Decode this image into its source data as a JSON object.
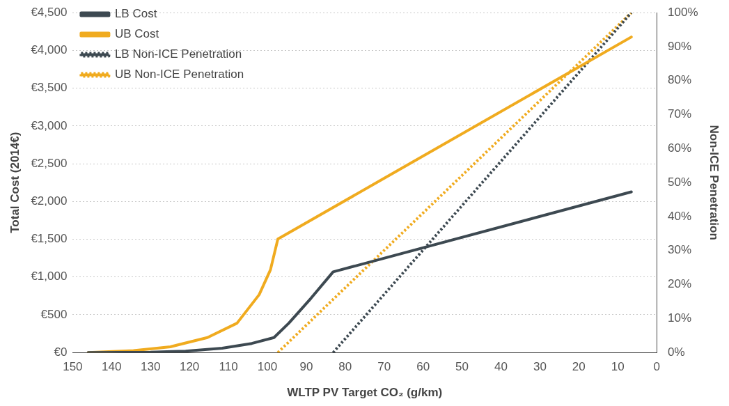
{
  "chart_data": {
    "type": "line",
    "xlabel": "WLTP PV Target CO₂ (g/km)",
    "ylabel": "Total Cost (2014€)",
    "y2label": "Non-ICE Penetration",
    "xlim": [
      150,
      0
    ],
    "xticks": [
      150,
      140,
      130,
      120,
      110,
      100,
      90,
      80,
      70,
      60,
      50,
      40,
      30,
      20,
      10,
      0
    ],
    "ylim": [
      0,
      4500
    ],
    "yticks": [
      {
        "value": 0,
        "label": "€0"
      },
      {
        "value": 500,
        "label": "€500"
      },
      {
        "value": 1000,
        "label": "€1,000"
      },
      {
        "value": 1500,
        "label": "€1,500"
      },
      {
        "value": 2000,
        "label": "€2,000"
      },
      {
        "value": 2500,
        "label": "€2,500"
      },
      {
        "value": 3000,
        "label": "€3,000"
      },
      {
        "value": 3500,
        "label": "€3,500"
      },
      {
        "value": 4000,
        "label": "€4,000"
      },
      {
        "value": 4500,
        "label": "€4,500"
      }
    ],
    "y2lim": [
      0,
      100
    ],
    "y2ticks": [
      {
        "value": 0,
        "label": "0%"
      },
      {
        "value": 10,
        "label": "10%"
      },
      {
        "value": 20,
        "label": "20%"
      },
      {
        "value": 30,
        "label": "30%"
      },
      {
        "value": 40,
        "label": "40%"
      },
      {
        "value": 50,
        "label": "50%"
      },
      {
        "value": 60,
        "label": "60%"
      },
      {
        "value": 70,
        "label": "70%"
      },
      {
        "value": 80,
        "label": "80%"
      },
      {
        "value": 90,
        "label": "90%"
      },
      {
        "value": 100,
        "label": "100%"
      }
    ],
    "grid": "y",
    "legend": "top left",
    "marker": "none",
    "series": [
      {
        "name": "LB Cost",
        "color": "#3d4951",
        "line_style": "solid",
        "x": [
          146,
          130,
          121,
          111.6,
          104,
          98.3,
          94.5,
          88.8,
          83.1,
          6.5
        ],
        "values": [
          0,
          5,
          19,
          57,
          120,
          198,
          388,
          718,
          1068,
          2127
        ]
      },
      {
        "name": "UB Cost",
        "color": "#f0ab1f",
        "line_style": "solid",
        "x": [
          146,
          134.4,
          124.9,
          115.4,
          107.8,
          102.1,
          99.2,
          97.3,
          6.5
        ],
        "values": [
          0,
          25,
          76,
          198,
          388,
          766,
          1096,
          1503,
          4178
        ]
      },
      {
        "name": "LB Non-ICE Penetration",
        "color": "#3d4951",
        "line_style": "dotted",
        "axis": "y2",
        "x": [
          83.1,
          6.5
        ],
        "values": [
          0,
          100
        ]
      },
      {
        "name": "UB Non-ICE Penetration",
        "color": "#f0ab1f",
        "line_style": "dotted",
        "axis": "y2",
        "x": [
          97.3,
          6.5
        ],
        "values": [
          0,
          100
        ]
      }
    ]
  }
}
